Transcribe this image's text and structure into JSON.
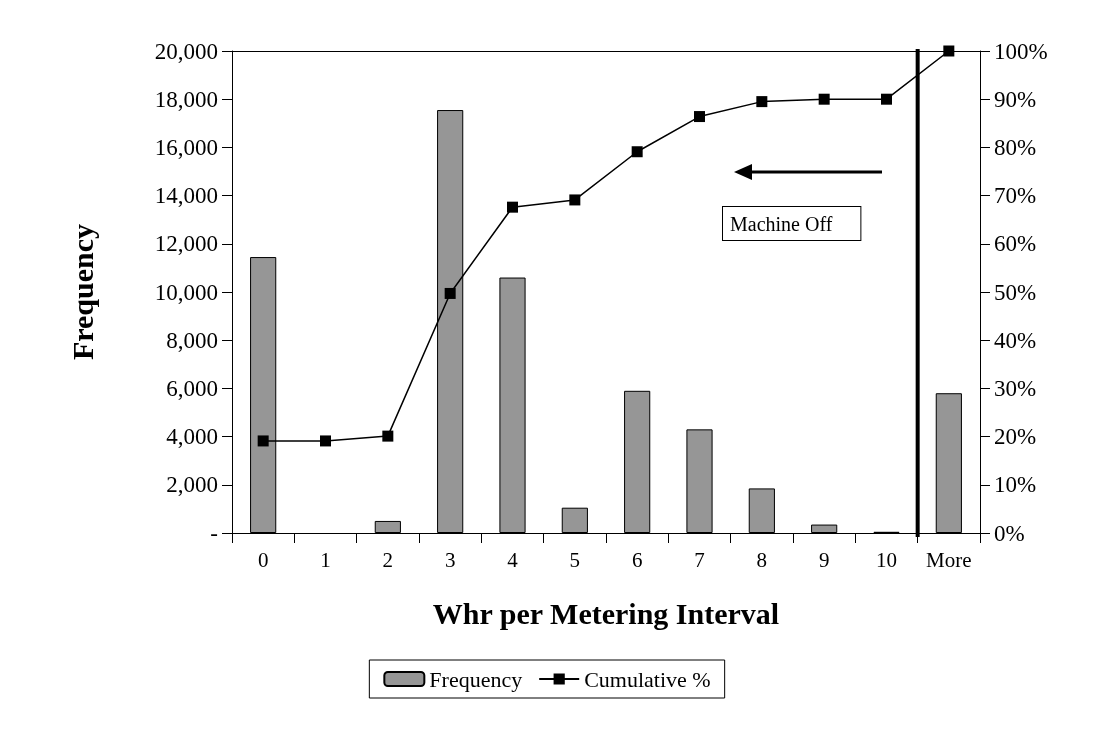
{
  "chart_data": {
    "type": "bar",
    "xlabel": "Whr per Metering Interval",
    "ylabel": "Frequency",
    "categories": [
      "0",
      "1",
      "2",
      "3",
      "4",
      "5",
      "6",
      "7",
      "8",
      "9",
      "10",
      "More"
    ],
    "series": [
      {
        "name": "Frequency",
        "color": "#969696",
        "values": [
          11450,
          0,
          500,
          17550,
          10600,
          1050,
          5900,
          4300,
          1850,
          350,
          50,
          5800
        ]
      },
      {
        "name": "Cumulative %",
        "type": "line",
        "axis": "y2",
        "color": "#000000",
        "marker": "square",
        "values": [
          19.1,
          19.1,
          20.1,
          49.7,
          67.6,
          69.1,
          79.1,
          86.4,
          89.5,
          90,
          90,
          100
        ]
      }
    ],
    "ylim": [
      0,
      20000
    ],
    "yticks": [
      {
        "value": 0,
        "label": "-"
      },
      {
        "value": 2000,
        "label": "2,000"
      },
      {
        "value": 4000,
        "label": "4,000"
      },
      {
        "value": 6000,
        "label": "6,000"
      },
      {
        "value": 8000,
        "label": "8,000"
      },
      {
        "value": 10000,
        "label": "10,000"
      },
      {
        "value": 12000,
        "label": "12,000"
      },
      {
        "value": 14000,
        "label": "14,000"
      },
      {
        "value": 16000,
        "label": "16,000"
      },
      {
        "value": 18000,
        "label": "18,000"
      },
      {
        "value": 20000,
        "label": "20,000"
      }
    ],
    "y2lim": [
      0,
      100
    ],
    "y2ticks": [
      {
        "value": 0,
        "label": "0%"
      },
      {
        "value": 10,
        "label": "10%"
      },
      {
        "value": 20,
        "label": "20%"
      },
      {
        "value": 30,
        "label": "30%"
      },
      {
        "value": 40,
        "label": "40%"
      },
      {
        "value": 50,
        "label": "50%"
      },
      {
        "value": 60,
        "label": "60%"
      },
      {
        "value": 70,
        "label": "70%"
      },
      {
        "value": 80,
        "label": "80%"
      },
      {
        "value": 90,
        "label": "90%"
      },
      {
        "value": 100,
        "label": "100%"
      }
    ],
    "annotations": [
      "Machine Off"
    ],
    "legend": "bottom",
    "grid": false
  }
}
